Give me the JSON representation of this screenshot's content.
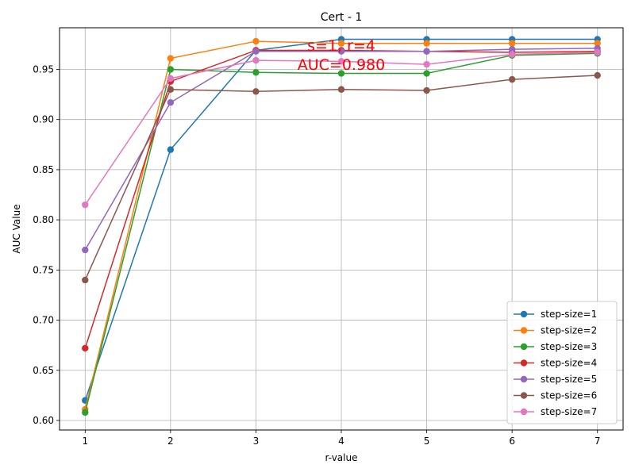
{
  "chart_data": {
    "type": "line",
    "title": "Cert - 1",
    "xlabel": "r-value",
    "ylabel": "AUC Value",
    "x": [
      1,
      2,
      3,
      4,
      5,
      6,
      7
    ],
    "xlim": [
      0.7,
      7.3
    ],
    "ylim": [
      0.5905,
      0.9915
    ],
    "xticks": [
      1,
      2,
      3,
      4,
      5,
      6,
      7
    ],
    "yticks": [
      "0.60",
      "0.65",
      "0.70",
      "0.75",
      "0.80",
      "0.85",
      "0.90",
      "0.95"
    ],
    "grid": true,
    "legend_position": "lower-right",
    "series": [
      {
        "name": "step-size=1",
        "color": "#1f77b4",
        "values": [
          0.62,
          0.87,
          0.969,
          0.98,
          0.98,
          0.98,
          0.98
        ]
      },
      {
        "name": "step-size=2",
        "color": "#ff7f0e",
        "values": [
          0.611,
          0.961,
          0.978,
          0.976,
          0.976,
          0.976,
          0.976
        ]
      },
      {
        "name": "step-size=3",
        "color": "#2ca02c",
        "values": [
          0.608,
          0.95,
          0.947,
          0.946,
          0.946,
          0.964,
          0.966
        ]
      },
      {
        "name": "step-size=4",
        "color": "#d62728",
        "values": [
          0.672,
          0.938,
          0.969,
          0.969,
          0.968,
          0.967,
          0.968
        ]
      },
      {
        "name": "step-size=5",
        "color": "#9467bd",
        "values": [
          0.77,
          0.917,
          0.968,
          0.968,
          0.968,
          0.97,
          0.971
        ]
      },
      {
        "name": "step-size=6",
        "color": "#8c564b",
        "values": [
          0.74,
          0.93,
          0.928,
          0.93,
          0.929,
          0.94,
          0.944
        ]
      },
      {
        "name": "step-size=7",
        "color": "#e377c2",
        "values": [
          0.815,
          0.941,
          0.959,
          0.958,
          0.955,
          0.965,
          0.967
        ]
      }
    ],
    "annotation": {
      "lines": [
        "s=1, r=4",
        "AUC=0.980"
      ],
      "x": 4,
      "y": 0.9795,
      "color": "#ff0000"
    }
  }
}
